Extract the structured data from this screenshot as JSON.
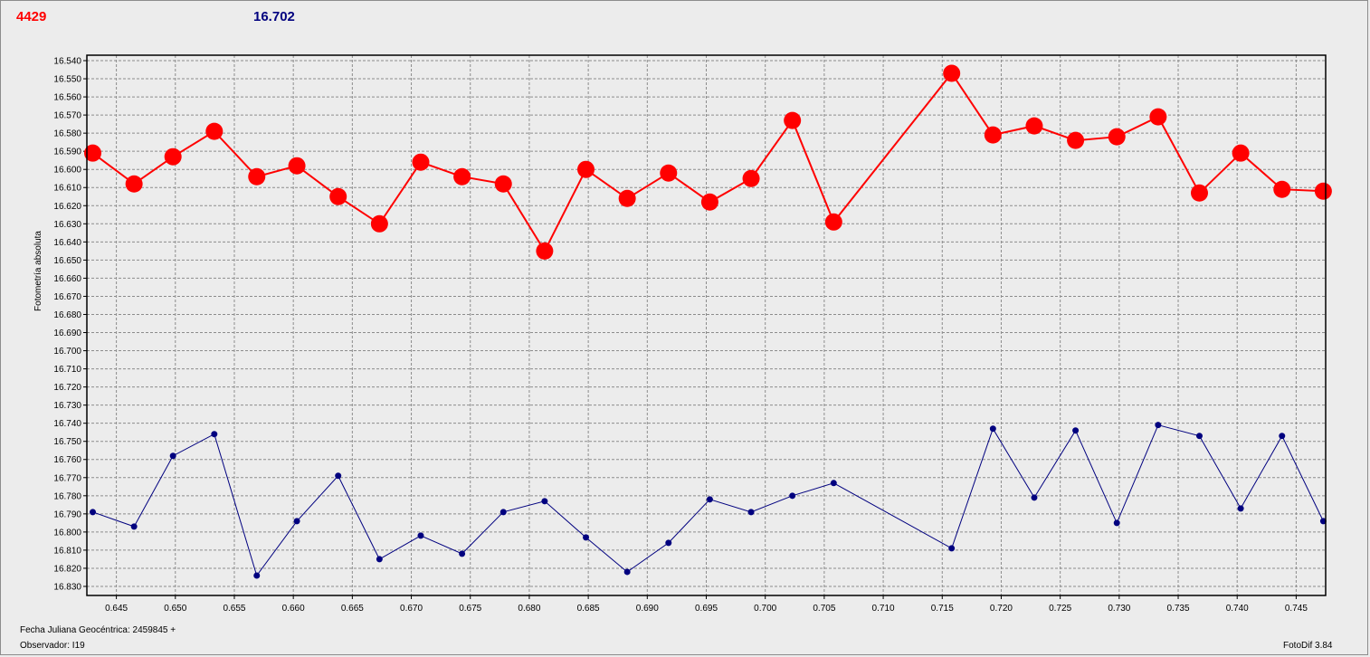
{
  "header": {
    "left_value": "4429",
    "right_value": "16.702"
  },
  "footer": {
    "date_label": "Fecha Juliana Geocéntrica: 2459845 +",
    "observer_label": "Observador: I19",
    "software_label": "FotoDif 3.84"
  },
  "colors": {
    "series_red": "#ff0000",
    "series_blue": "#00007f",
    "plot_bg": "#ececec",
    "grid": "#8c8c8c"
  },
  "chart_data": {
    "type": "line",
    "title": "",
    "xlabel": "",
    "ylabel": "Fotometría absoluta",
    "xlim": [
      0.6425,
      0.7475
    ],
    "ylim": [
      16.835,
      16.537
    ],
    "y_inverted": true,
    "grid": true,
    "x_ticks": [
      "0.645",
      "0.650",
      "0.655",
      "0.660",
      "0.665",
      "0.670",
      "0.675",
      "0.680",
      "0.685",
      "0.690",
      "0.695",
      "0.700",
      "0.705",
      "0.710",
      "0.715",
      "0.720",
      "0.725",
      "0.730",
      "0.735",
      "0.740",
      "0.745"
    ],
    "y_ticks": [
      "16.540",
      "16.550",
      "16.560",
      "16.570",
      "16.580",
      "16.590",
      "16.600",
      "16.610",
      "16.620",
      "16.630",
      "16.640",
      "16.650",
      "16.660",
      "16.670",
      "16.680",
      "16.690",
      "16.700",
      "16.710",
      "16.720",
      "16.730",
      "16.740",
      "16.750",
      "16.760",
      "16.770",
      "16.780",
      "16.790",
      "16.800",
      "16.810",
      "16.820",
      "16.830"
    ],
    "series": [
      {
        "color": "#ff0000",
        "marker": "large-circle",
        "x": [
          0.643,
          0.6465,
          0.6498,
          0.6533,
          0.6569,
          0.6603,
          0.6638,
          0.6673,
          0.6708,
          0.6743,
          0.6778,
          0.6813,
          0.6848,
          0.6883,
          0.6918,
          0.6953,
          0.6988,
          0.7023,
          0.7058,
          0.7158,
          0.7193,
          0.7228,
          0.7263,
          0.7298,
          0.7333,
          0.7368,
          0.7403,
          0.7438,
          0.7473
        ],
        "y": [
          16.591,
          16.608,
          16.593,
          16.579,
          16.604,
          16.598,
          16.615,
          16.63,
          16.596,
          16.604,
          16.608,
          16.645,
          16.6,
          16.616,
          16.602,
          16.618,
          16.605,
          16.573,
          16.629,
          16.547,
          16.581,
          16.576,
          16.584,
          16.582,
          16.571,
          16.613,
          16.591,
          16.611,
          16.612
        ]
      },
      {
        "color": "#00007f",
        "marker": "small-dot",
        "x": [
          0.643,
          0.6465,
          0.6498,
          0.6533,
          0.6569,
          0.6603,
          0.6638,
          0.6673,
          0.6708,
          0.6743,
          0.6778,
          0.6813,
          0.6848,
          0.6883,
          0.6918,
          0.6953,
          0.6988,
          0.7023,
          0.7058,
          0.7158,
          0.7193,
          0.7228,
          0.7263,
          0.7298,
          0.7333,
          0.7368,
          0.7403,
          0.7438,
          0.7473
        ],
        "y": [
          16.789,
          16.797,
          16.758,
          16.746,
          16.824,
          16.794,
          16.769,
          16.815,
          16.802,
          16.812,
          16.789,
          16.783,
          16.803,
          16.822,
          16.806,
          16.782,
          16.789,
          16.78,
          16.773,
          16.809,
          16.743,
          16.781,
          16.744,
          16.795,
          16.741,
          16.747,
          16.787,
          16.747,
          16.794
        ]
      }
    ]
  }
}
